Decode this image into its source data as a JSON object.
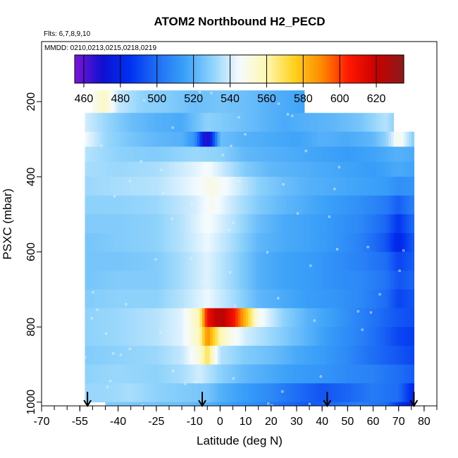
{
  "chart_data": {
    "type": "heatmap",
    "title": "ATOM2 Northbound H2_PECD",
    "flights_note": "Flts: 6,7,8,9,10",
    "dates_note": "MMDD: 0210,0213,0215,0218,0219",
    "xlabel": "Latitude (deg N)",
    "ylabel": "PSXC (mbar)",
    "xlim": [
      -70,
      85
    ],
    "ylim": [
      1010,
      40
    ],
    "y_reversed": true,
    "x_ticks": [
      -70,
      -55,
      -40,
      -25,
      -10,
      0,
      10,
      20,
      30,
      40,
      50,
      60,
      70,
      80
    ],
    "x_tick_labels": [
      "-70",
      "-55",
      "-40",
      "-25",
      "-10",
      "0",
      "10",
      "20",
      "30",
      "40",
      "50",
      "60",
      "70",
      "80"
    ],
    "y_ticks": [
      200,
      400,
      600,
      800,
      1000
    ],
    "y_tick_labels": [
      "200",
      "400",
      "600",
      "800",
      "1000"
    ],
    "colorbar": {
      "min": 455,
      "max": 635,
      "ticks": [
        460,
        480,
        500,
        520,
        540,
        560,
        580,
        600,
        620
      ],
      "tick_labels": [
        "460",
        "480",
        "500",
        "520",
        "540",
        "560",
        "580",
        "600",
        "620"
      ],
      "colors": [
        "#7b16d6",
        "#1010d0",
        "#0030f0",
        "#1e6ef5",
        "#3aa0f8",
        "#8dd2fb",
        "#f4fbff",
        "#fff7b0",
        "#ffd21e",
        "#ff8a00",
        "#ff1800",
        "#c80000",
        "#8b1a1a"
      ]
    },
    "arrow_latitudes": [
      -52,
      -7,
      42,
      76
    ],
    "layers": [
      {
        "p_top": 170,
        "p_bot": 230,
        "lat_min": -50,
        "lat_max": 33,
        "lat": [
          -50,
          -45,
          -40,
          -30,
          -20,
          -10,
          0,
          10,
          20,
          33
        ],
        "values": [
          548,
          556,
          538,
          530,
          528,
          524,
          526,
          524,
          520,
          516
        ]
      },
      {
        "p_top": 230,
        "p_bot": 280,
        "lat_min": -53,
        "lat_max": 68,
        "lat": [
          -53,
          -45,
          -35,
          -25,
          -15,
          -5,
          5,
          15,
          25,
          35,
          45,
          55,
          65,
          68
        ],
        "values": [
          540,
          532,
          524,
          520,
          518,
          530,
          526,
          522,
          518,
          520,
          522,
          526,
          536,
          530
        ]
      },
      {
        "p_top": 280,
        "p_bot": 320,
        "lat_min": -53,
        "lat_max": 76,
        "lat": [
          -53,
          -45,
          -35,
          -25,
          -15,
          -10,
          -5,
          0,
          10,
          20,
          30,
          40,
          50,
          60,
          65,
          70,
          76
        ],
        "values": [
          545,
          532,
          526,
          522,
          520,
          512,
          462,
          524,
          520,
          518,
          516,
          520,
          518,
          522,
          530,
          550,
          528
        ]
      },
      {
        "p_top": 320,
        "p_bot": 360,
        "lat_min": -53,
        "lat_max": 76,
        "lat": [
          -53,
          -40,
          -25,
          -10,
          0,
          10,
          20,
          30,
          40,
          50,
          60,
          70,
          76
        ],
        "values": [
          536,
          530,
          528,
          532,
          530,
          522,
          520,
          518,
          516,
          514,
          516,
          520,
          518
        ]
      },
      {
        "p_top": 360,
        "p_bot": 400,
        "lat_min": -53,
        "lat_max": 76,
        "lat": [
          -53,
          -40,
          -25,
          -10,
          -5,
          0,
          10,
          20,
          30,
          40,
          50,
          60,
          70,
          76
        ],
        "values": [
          534,
          532,
          534,
          542,
          546,
          540,
          528,
          522,
          520,
          518,
          516,
          514,
          518,
          516
        ]
      },
      {
        "p_top": 400,
        "p_bot": 450,
        "lat_min": -53,
        "lat_max": 76,
        "lat": [
          -53,
          -40,
          -25,
          -10,
          -3,
          5,
          15,
          25,
          35,
          45,
          55,
          65,
          70,
          76
        ],
        "values": [
          532,
          534,
          536,
          544,
          550,
          542,
          530,
          524,
          520,
          518,
          516,
          514,
          510,
          512
        ]
      },
      {
        "p_top": 450,
        "p_bot": 500,
        "lat_min": -53,
        "lat_max": 76,
        "lat": [
          -53,
          -40,
          -25,
          -10,
          -3,
          5,
          15,
          25,
          35,
          45,
          55,
          65,
          70,
          76
        ],
        "values": [
          530,
          530,
          532,
          540,
          548,
          538,
          528,
          522,
          518,
          514,
          510,
          504,
          496,
          506
        ]
      },
      {
        "p_top": 500,
        "p_bot": 550,
        "lat_min": -53,
        "lat_max": 76,
        "lat": [
          -53,
          -40,
          -25,
          -15,
          -5,
          5,
          15,
          25,
          35,
          45,
          55,
          65,
          70,
          76
        ],
        "values": [
          528,
          528,
          530,
          536,
          546,
          536,
          524,
          518,
          516,
          512,
          508,
          498,
          486,
          500
        ]
      },
      {
        "p_top": 550,
        "p_bot": 600,
        "lat_min": -53,
        "lat_max": 76,
        "lat": [
          -53,
          -40,
          -25,
          -15,
          -5,
          5,
          15,
          25,
          35,
          45,
          55,
          65,
          70,
          76
        ],
        "values": [
          526,
          528,
          530,
          536,
          544,
          534,
          522,
          518,
          516,
          512,
          506,
          494,
          480,
          496
        ]
      },
      {
        "p_top": 600,
        "p_bot": 650,
        "lat_min": -53,
        "lat_max": 76,
        "lat": [
          -53,
          -40,
          -25,
          -15,
          -5,
          5,
          15,
          25,
          35,
          45,
          55,
          65,
          70,
          76
        ],
        "values": [
          526,
          526,
          528,
          534,
          542,
          532,
          520,
          516,
          514,
          510,
          506,
          500,
          490,
          496
        ]
      },
      {
        "p_top": 650,
        "p_bot": 700,
        "lat_min": -53,
        "lat_max": 76,
        "lat": [
          -53,
          -40,
          -25,
          -15,
          -5,
          5,
          15,
          25,
          35,
          45,
          55,
          65,
          70,
          76
        ],
        "values": [
          526,
          528,
          528,
          534,
          542,
          532,
          520,
          516,
          514,
          510,
          508,
          502,
          494,
          498
        ]
      },
      {
        "p_top": 700,
        "p_bot": 750,
        "lat_min": -53,
        "lat_max": 76,
        "lat": [
          -53,
          -40,
          -25,
          -15,
          -5,
          5,
          15,
          25,
          35,
          45,
          55,
          65,
          70,
          76
        ],
        "values": [
          528,
          530,
          530,
          536,
          544,
          534,
          522,
          518,
          514,
          512,
          508,
          500,
          490,
          494
        ]
      },
      {
        "p_top": 750,
        "p_bot": 800,
        "lat_min": -53,
        "lat_max": 76,
        "lat": [
          -53,
          -40,
          -25,
          -15,
          -8,
          -5,
          0,
          5,
          10,
          15,
          25,
          35,
          45,
          55,
          65,
          70,
          76
        ],
        "values": [
          530,
          532,
          536,
          542,
          560,
          610,
          625,
          610,
          580,
          548,
          530,
          520,
          514,
          506,
          498,
          494,
          492
        ]
      },
      {
        "p_top": 800,
        "p_bot": 850,
        "lat_min": -53,
        "lat_max": 76,
        "lat": [
          -53,
          -40,
          -25,
          -15,
          -8,
          -5,
          0,
          5,
          10,
          15,
          25,
          35,
          45,
          55,
          65,
          70,
          76
        ],
        "values": [
          530,
          532,
          536,
          542,
          558,
          590,
          560,
          548,
          540,
          536,
          528,
          520,
          512,
          506,
          496,
          490,
          488
        ]
      },
      {
        "p_top": 850,
        "p_bot": 900,
        "lat_min": -53,
        "lat_max": 76,
        "lat": [
          -53,
          -40,
          -25,
          -15,
          -8,
          -5,
          0,
          10,
          20,
          30,
          40,
          50,
          60,
          70,
          76
        ],
        "values": [
          528,
          530,
          532,
          538,
          552,
          570,
          536,
          528,
          524,
          518,
          514,
          508,
          500,
          494,
          490
        ]
      },
      {
        "p_top": 900,
        "p_bot": 950,
        "lat_min": -53,
        "lat_max": 76,
        "lat": [
          -53,
          -40,
          -25,
          -15,
          -8,
          0,
          10,
          20,
          30,
          40,
          50,
          60,
          70,
          76
        ],
        "values": [
          530,
          532,
          530,
          534,
          540,
          530,
          522,
          518,
          514,
          512,
          508,
          506,
          500,
          496
        ]
      },
      {
        "p_top": 950,
        "p_bot": 1000,
        "lat_min": -53,
        "lat_max": 76,
        "lat": [
          -53,
          -45,
          -35,
          -25,
          -15,
          -5,
          0,
          10,
          20,
          30,
          40,
          50,
          60,
          70,
          76
        ],
        "values": [
          532,
          532,
          534,
          530,
          528,
          526,
          520,
          514,
          508,
          500,
          494,
          498,
          504,
          500,
          480
        ]
      },
      {
        "p_top": 1000,
        "p_bot": 1010,
        "lat_min": -45,
        "lat_max": 76,
        "lat": [
          -45,
          -30,
          -15,
          -5,
          5,
          15,
          25,
          35,
          45,
          55,
          65,
          76
        ],
        "values": [
          528,
          526,
          524,
          520,
          514,
          508,
          500,
          494,
          500,
          506,
          500,
          470
        ]
      }
    ]
  }
}
